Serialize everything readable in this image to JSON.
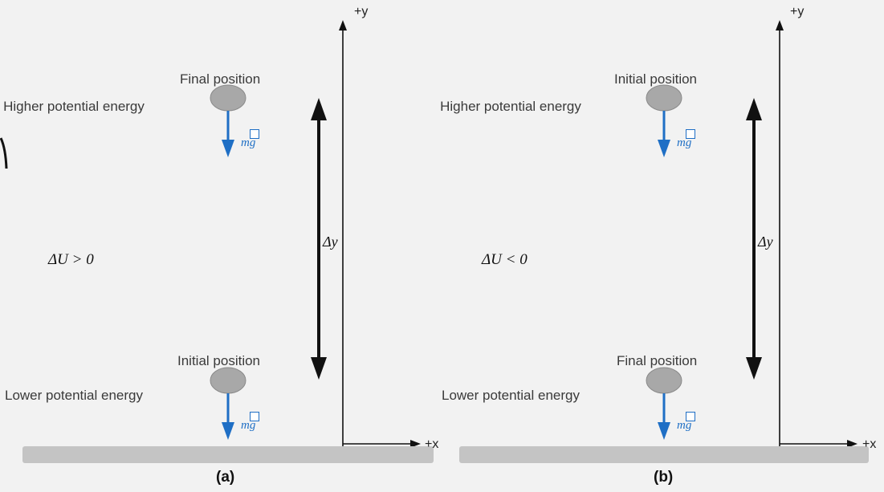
{
  "panels": [
    {
      "id": "a",
      "caption": "(a)",
      "top_position_label": "Final position",
      "bottom_position_label": "Initial position",
      "higher_energy_label": "Higher potential energy",
      "lower_energy_label": "Lower potential energy",
      "delta_u_label": "ΔU > 0",
      "delta_y_label": "Δy",
      "force_label": "mg",
      "y_axis_label": "+y",
      "x_axis_label": "+x"
    },
    {
      "id": "b",
      "caption": "(b)",
      "top_position_label": "Initial position",
      "bottom_position_label": "Final position",
      "higher_energy_label": "Higher potential energy",
      "lower_energy_label": "Lower potential energy",
      "delta_u_label": "ΔU < 0",
      "delta_y_label": "Δy",
      "force_label": "mg",
      "y_axis_label": "+y",
      "x_axis_label": "+x"
    }
  ],
  "colors": {
    "background": "#f2f2f2",
    "ball": "#a8a8a8",
    "force_arrow": "#1f6fc5",
    "ground": "#c4c4c4",
    "axis": "#111111"
  }
}
